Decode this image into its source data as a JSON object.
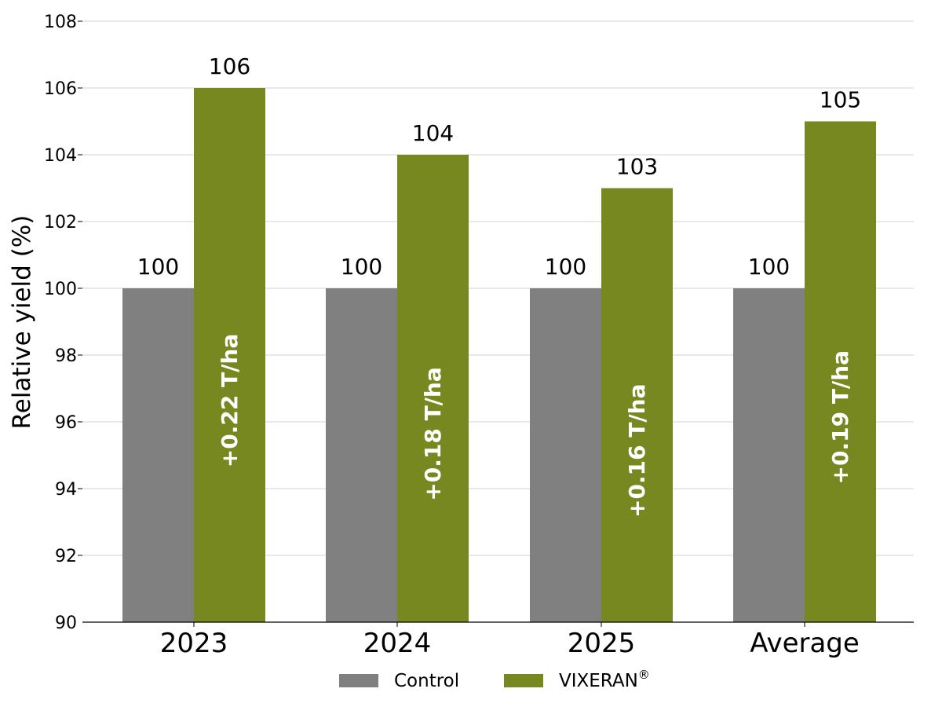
{
  "chart_data": {
    "type": "bar",
    "categories": [
      "2023",
      "2024",
      "2025",
      "Average"
    ],
    "series": [
      {
        "name": "Control",
        "values": [
          100,
          100,
          100,
          100
        ],
        "color": "#808080"
      },
      {
        "name": "VIXERAN",
        "name_superscript": "®",
        "values": [
          106,
          104,
          103,
          105
        ],
        "color": "#76881f"
      }
    ],
    "inner_labels": [
      "+0.22 T/ha",
      "+0.18 T/ha",
      "+0.16 T/ha",
      "+0.19 T/ha"
    ],
    "ylabel": "Relative yield (%)",
    "ylim": [
      90,
      108
    ],
    "yticks": [
      90,
      92,
      94,
      96,
      98,
      100,
      102,
      104,
      106,
      108
    ],
    "grid": true,
    "legend_position": "bottom-center"
  }
}
